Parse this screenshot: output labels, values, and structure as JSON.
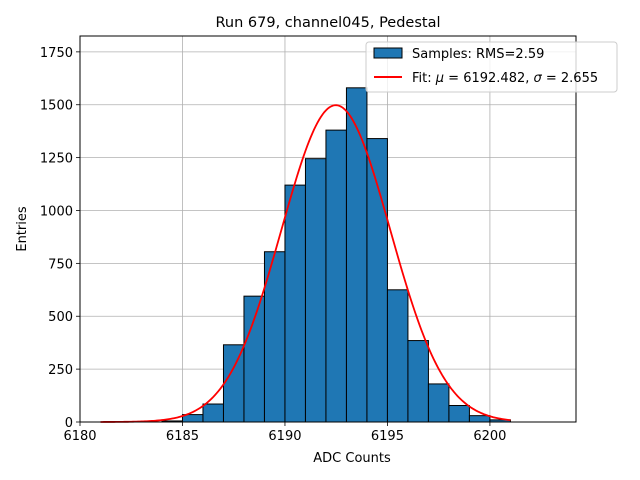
{
  "chart_data": {
    "type": "bar",
    "title": "Run 679, channel045, Pedestal",
    "xlabel": "ADC Counts",
    "ylabel": "Entries",
    "xlim": [
      6180,
      6204.2
    ],
    "ylim": [
      0,
      1825
    ],
    "xticks": [
      6180,
      6185,
      6190,
      6195,
      6200
    ],
    "yticks": [
      0,
      250,
      500,
      750,
      1000,
      1250,
      1500,
      1750
    ],
    "grid": true,
    "legend_position": "top-right",
    "histogram": {
      "name": "Samples: RMS=2.59",
      "color": "#1f77b4",
      "edge_color": "#000000",
      "bin_width": 1,
      "bin_starts": [
        6181,
        6182,
        6183,
        6184,
        6185,
        6186,
        6187,
        6188,
        6189,
        6190,
        6191,
        6192,
        6193,
        6194,
        6195,
        6196,
        6197,
        6198,
        6199,
        6200
      ],
      "counts": [
        0,
        0,
        0,
        5,
        35,
        85,
        365,
        595,
        805,
        1120,
        1245,
        1380,
        1580,
        1340,
        625,
        385,
        180,
        78,
        30,
        10
      ]
    },
    "fit": {
      "name": "Fit: μ = 6192.482, σ = 2.655",
      "label_prefix": "Fit: ",
      "mu_symbol": "μ",
      "mu_text": " = 6192.482, ",
      "sigma_symbol": "σ",
      "sigma_text": " = 2.655",
      "color": "#ff0000",
      "mu": 6192.482,
      "sigma": 2.655,
      "amplitude": 1498,
      "x_range": [
        6181,
        6201
      ]
    }
  }
}
